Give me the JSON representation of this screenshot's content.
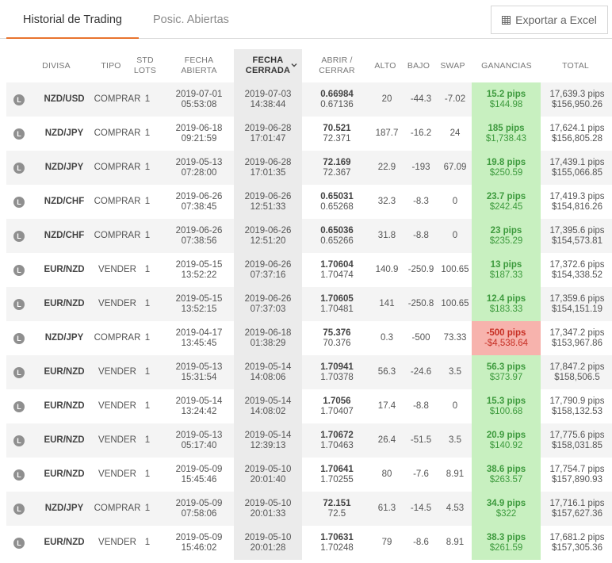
{
  "tabs": {
    "history": "Historial de Trading",
    "open": "Posic. Abiertas"
  },
  "export": {
    "label": "Exportar a Excel",
    "icon": "spreadsheet-icon"
  },
  "columns": {
    "divisa": "DIVISA",
    "tipo": "TIPO",
    "std_1": "STD",
    "std_2": "LOTS",
    "fecha_abierta_1": "FECHA",
    "fecha_abierta_2": "ABIERTA",
    "fecha_cerrada_1": "FECHA",
    "fecha_cerrada_2": "CERRADA",
    "abrir_1": "ABRIR /",
    "abrir_2": "CERRAR",
    "alto": "ALTO",
    "bajo": "BAJO",
    "swap": "SWAP",
    "ganancias": "GANANCIAS",
    "total": "TOTAL"
  },
  "colors": {
    "accent": "#e8742f",
    "profit_bg": "#c8f0c0",
    "loss_bg": "#f7b3ad",
    "profit_text": "#3d9a3d",
    "loss_text": "#c73025"
  },
  "rows": [
    {
      "badge": "L",
      "pair": "NZD/USD",
      "type": "COMPRAR",
      "lots": "1",
      "open_date": "2019-07-01",
      "open_time": "05:53:08",
      "close_date": "2019-07-03",
      "close_time": "14:38:44",
      "open_price": "0.66984",
      "close_price": "0.67136",
      "high": "20",
      "low": "-44.3",
      "swap": "-7.02",
      "pips": "15.2 pips",
      "money": "$144.98",
      "total_pips": "17,639.3 pips",
      "total_money": "$156,950.26",
      "profit": true
    },
    {
      "badge": "L",
      "pair": "NZD/JPY",
      "type": "COMPRAR",
      "lots": "1",
      "open_date": "2019-06-18",
      "open_time": "09:21:59",
      "close_date": "2019-06-28",
      "close_time": "17:01:47",
      "open_price": "70.521",
      "close_price": "72.371",
      "high": "187.7",
      "low": "-16.2",
      "swap": "24",
      "pips": "185 pips",
      "money": "$1,738.43",
      "total_pips": "17,624.1 pips",
      "total_money": "$156,805.28",
      "profit": true
    },
    {
      "badge": "L",
      "pair": "NZD/JPY",
      "type": "COMPRAR",
      "lots": "1",
      "open_date": "2019-05-13",
      "open_time": "07:28:00",
      "close_date": "2019-06-28",
      "close_time": "17:01:35",
      "open_price": "72.169",
      "close_price": "72.367",
      "high": "22.9",
      "low": "-193",
      "swap": "67.09",
      "pips": "19.8 pips",
      "money": "$250.59",
      "total_pips": "17,439.1 pips",
      "total_money": "$155,066.85",
      "profit": true
    },
    {
      "badge": "L",
      "pair": "NZD/CHF",
      "type": "COMPRAR",
      "lots": "1",
      "open_date": "2019-06-26",
      "open_time": "07:38:45",
      "close_date": "2019-06-26",
      "close_time": "12:51:33",
      "open_price": "0.65031",
      "close_price": "0.65268",
      "high": "32.3",
      "low": "-8.3",
      "swap": "0",
      "pips": "23.7 pips",
      "money": "$242.45",
      "total_pips": "17,419.3 pips",
      "total_money": "$154,816.26",
      "profit": true
    },
    {
      "badge": "L",
      "pair": "NZD/CHF",
      "type": "COMPRAR",
      "lots": "1",
      "open_date": "2019-06-26",
      "open_time": "07:38:56",
      "close_date": "2019-06-26",
      "close_time": "12:51:20",
      "open_price": "0.65036",
      "close_price": "0.65266",
      "high": "31.8",
      "low": "-8.8",
      "swap": "0",
      "pips": "23 pips",
      "money": "$235.29",
      "total_pips": "17,395.6 pips",
      "total_money": "$154,573.81",
      "profit": true
    },
    {
      "badge": "L",
      "pair": "EUR/NZD",
      "type": "VENDER",
      "lots": "1",
      "open_date": "2019-05-15",
      "open_time": "13:52:22",
      "close_date": "2019-06-26",
      "close_time": "07:37:16",
      "open_price": "1.70604",
      "close_price": "1.70474",
      "high": "140.9",
      "low": "-250.9",
      "swap": "100.65",
      "pips": "13 pips",
      "money": "$187.33",
      "total_pips": "17,372.6 pips",
      "total_money": "$154,338.52",
      "profit": true
    },
    {
      "badge": "L",
      "pair": "EUR/NZD",
      "type": "VENDER",
      "lots": "1",
      "open_date": "2019-05-15",
      "open_time": "13:52:15",
      "close_date": "2019-06-26",
      "close_time": "07:37:03",
      "open_price": "1.70605",
      "close_price": "1.70481",
      "high": "141",
      "low": "-250.8",
      "swap": "100.65",
      "pips": "12.4 pips",
      "money": "$183.33",
      "total_pips": "17,359.6 pips",
      "total_money": "$154,151.19",
      "profit": true
    },
    {
      "badge": "L",
      "pair": "NZD/JPY",
      "type": "COMPRAR",
      "lots": "1",
      "open_date": "2019-04-17",
      "open_time": "13:45:45",
      "close_date": "2019-06-18",
      "close_time": "01:38:29",
      "open_price": "75.376",
      "close_price": "70.376",
      "high": "0.3",
      "low": "-500",
      "swap": "73.33",
      "pips": "-500 pips",
      "money": "-$4,538.64",
      "total_pips": "17,347.2 pips",
      "total_money": "$153,967.86",
      "profit": false
    },
    {
      "badge": "L",
      "pair": "EUR/NZD",
      "type": "VENDER",
      "lots": "1",
      "open_date": "2019-05-13",
      "open_time": "15:31:54",
      "close_date": "2019-05-14",
      "close_time": "14:08:06",
      "open_price": "1.70941",
      "close_price": "1.70378",
      "high": "56.3",
      "low": "-24.6",
      "swap": "3.5",
      "pips": "56.3 pips",
      "money": "$373.97",
      "total_pips": "17,847.2 pips",
      "total_money": "$158,506.5",
      "profit": true
    },
    {
      "badge": "L",
      "pair": "EUR/NZD",
      "type": "VENDER",
      "lots": "1",
      "open_date": "2019-05-14",
      "open_time": "13:24:42",
      "close_date": "2019-05-14",
      "close_time": "14:08:02",
      "open_price": "1.7056",
      "close_price": "1.70407",
      "high": "17.4",
      "low": "-8.8",
      "swap": "0",
      "pips": "15.3 pips",
      "money": "$100.68",
      "total_pips": "17,790.9 pips",
      "total_money": "$158,132.53",
      "profit": true
    },
    {
      "badge": "L",
      "pair": "EUR/NZD",
      "type": "VENDER",
      "lots": "1",
      "open_date": "2019-05-13",
      "open_time": "05:17:40",
      "close_date": "2019-05-14",
      "close_time": "12:39:13",
      "open_price": "1.70672",
      "close_price": "1.70463",
      "high": "26.4",
      "low": "-51.5",
      "swap": "3.5",
      "pips": "20.9 pips",
      "money": "$140.92",
      "total_pips": "17,775.6 pips",
      "total_money": "$158,031.85",
      "profit": true
    },
    {
      "badge": "L",
      "pair": "EUR/NZD",
      "type": "VENDER",
      "lots": "1",
      "open_date": "2019-05-09",
      "open_time": "15:45:46",
      "close_date": "2019-05-10",
      "close_time": "20:01:40",
      "open_price": "1.70641",
      "close_price": "1.70255",
      "high": "80",
      "low": "-7.6",
      "swap": "8.91",
      "pips": "38.6 pips",
      "money": "$263.57",
      "total_pips": "17,754.7 pips",
      "total_money": "$157,890.93",
      "profit": true
    },
    {
      "badge": "L",
      "pair": "NZD/JPY",
      "type": "COMPRAR",
      "lots": "1",
      "open_date": "2019-05-09",
      "open_time": "07:58:06",
      "close_date": "2019-05-10",
      "close_time": "20:01:33",
      "open_price": "72.151",
      "close_price": "72.5",
      "high": "61.3",
      "low": "-14.5",
      "swap": "4.53",
      "pips": "34.9 pips",
      "money": "$322",
      "total_pips": "17,716.1 pips",
      "total_money": "$157,627.36",
      "profit": true
    },
    {
      "badge": "L",
      "pair": "EUR/NZD",
      "type": "VENDER",
      "lots": "1",
      "open_date": "2019-05-09",
      "open_time": "15:46:02",
      "close_date": "2019-05-10",
      "close_time": "20:01:28",
      "open_price": "1.70631",
      "close_price": "1.70248",
      "high": "79",
      "low": "-8.6",
      "swap": "8.91",
      "pips": "38.3 pips",
      "money": "$261.59",
      "total_pips": "17,681.2 pips",
      "total_money": "$157,305.36",
      "profit": true
    }
  ]
}
